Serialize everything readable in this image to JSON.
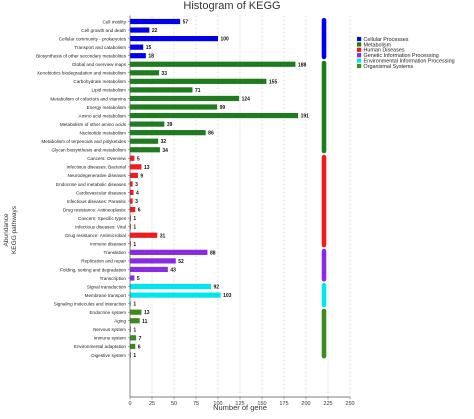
{
  "chart_data": {
    "type": "bar",
    "orientation": "horizontal",
    "title": "Histogram of KEGG",
    "xlabel": "Number of gene",
    "ylabel_outer": "Abundance",
    "ylabel_inner": "KEGG pathways",
    "xlim": [
      0,
      250
    ],
    "xticks": [
      0,
      25,
      50,
      75,
      100,
      125,
      150,
      175,
      200,
      225,
      250
    ],
    "grid": true,
    "legend_position": "right",
    "groups": [
      {
        "name": "Cellular Processes",
        "color": "#0000ee",
        "items": [
          {
            "label": "Cell motility",
            "value": 57
          },
          {
            "label": "Cell growth and death",
            "value": 22
          },
          {
            "label": "Cellular community - prokaryotes",
            "value": 100
          },
          {
            "label": "Transport and catabolism",
            "value": 15
          },
          {
            "label": "Biosynthesis of other secondary metabolites",
            "value": 18
          }
        ]
      },
      {
        "name": "Metabolism",
        "color": "#1e7b1e",
        "items": [
          {
            "label": "Global and overview maps",
            "value": 188
          },
          {
            "label": "Xenobiotics biodegradation and metabolism",
            "value": 33
          },
          {
            "label": "Carbohydrate metabolism",
            "value": 155
          },
          {
            "label": "Lipid metabolism",
            "value": 71
          },
          {
            "label": "Metabolism of cofactors and vitamins",
            "value": 124
          },
          {
            "label": "Energy metabolism",
            "value": 99
          },
          {
            "label": "Amino acid metabolism",
            "value": 191
          },
          {
            "label": "Metabolism of other amino acids",
            "value": 39
          },
          {
            "label": "Nucleotide metabolism",
            "value": 86
          },
          {
            "label": "Metabolism of terpenoids and polyketides",
            "value": 32
          },
          {
            "label": "Glycan biosynthesis and metabolism",
            "value": 34
          }
        ]
      },
      {
        "name": "Human Diseases",
        "color": "#ee1c1c",
        "items": [
          {
            "label": "Cancers: Overview",
            "value": 5
          },
          {
            "label": "Infectious diseases: Bacterial",
            "value": 13
          },
          {
            "label": "Neurodegenerative diseases",
            "value": 9
          },
          {
            "label": "Endocrine and metabolic diseases",
            "value": 3
          },
          {
            "label": "Cardiovascular diseases",
            "value": 4
          },
          {
            "label": "Infectious diseases: Parasitic",
            "value": 3
          },
          {
            "label": "Drug resistance: Antineoplastic",
            "value": 6
          },
          {
            "label": "Cancers: Specific types",
            "value": 1
          },
          {
            "label": "Infectious diseases: Viral",
            "value": 1
          },
          {
            "label": "Drug resistance: Antimicrobial",
            "value": 31
          },
          {
            "label": "Immune diseases",
            "value": 1
          }
        ]
      },
      {
        "name": "Genetic Information Processing",
        "color": "#8a2be2",
        "items": [
          {
            "label": "Translation",
            "value": 88
          },
          {
            "label": "Replication and repair",
            "value": 52
          },
          {
            "label": "Folding, sorting and degradation",
            "value": 43
          },
          {
            "label": "Transcription",
            "value": 5
          }
        ]
      },
      {
        "name": "Environmental Information Processing",
        "color": "#00e5ee",
        "items": [
          {
            "label": "Signal transduction",
            "value": 92
          },
          {
            "label": "Membrane transport",
            "value": 103
          },
          {
            "label": "Signaling molecules and interaction",
            "value": 1
          }
        ]
      },
      {
        "name": "Organismal Systems",
        "color": "#3d8a1e",
        "items": [
          {
            "label": "Endocrine system",
            "value": 13
          },
          {
            "label": "Aging",
            "value": 11
          },
          {
            "label": "Nervous system",
            "value": 1
          },
          {
            "label": "Immune system",
            "value": 7
          },
          {
            "label": "Environmental adaptation",
            "value": 6
          },
          {
            "label": "Digestive system",
            "value": 1
          }
        ]
      }
    ]
  }
}
